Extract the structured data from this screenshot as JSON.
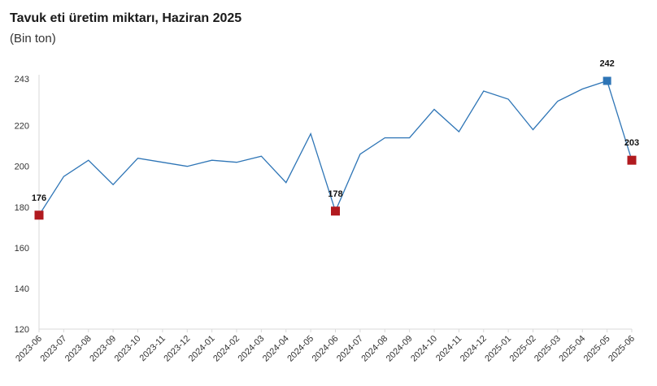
{
  "title": "Tavuk eti üretim miktarı, Haziran 2025",
  "subtitle": "(Bin ton)",
  "colors": {
    "line": "#2e75b6",
    "marker_red": "#b11a1f",
    "marker_blue": "#2e75b6",
    "axis": "#d9d9d9"
  },
  "chart_data": {
    "type": "line",
    "title": "Tavuk eti üretim miktarı, Haziran 2025",
    "subtitle": "(Bin ton)",
    "xlabel": "",
    "ylabel": "",
    "ylim": [
      120,
      243
    ],
    "yticks": [
      120,
      140,
      160,
      180,
      200,
      220,
      243
    ],
    "grid": false,
    "categories": [
      "2023-06",
      "2023-07",
      "2023-08",
      "2023-09",
      "2023-10",
      "2023-11",
      "2023-12",
      "2024-01",
      "2024-02",
      "2024-03",
      "2024-04",
      "2024-05",
      "2024-06",
      "2024-07",
      "2024-08",
      "2024-09",
      "2024-10",
      "2024-11",
      "2024-12",
      "2025-01",
      "2025-02",
      "2025-03",
      "2025-04",
      "2025-05",
      "2025-06"
    ],
    "series": [
      {
        "values": [
          176,
          195,
          203,
          191,
          204,
          202,
          200,
          203,
          202,
          205,
          192,
          216,
          178,
          206,
          214,
          214,
          228,
          217,
          237,
          233,
          218,
          232,
          238,
          242,
          203
        ]
      }
    ],
    "highlights": [
      {
        "index": 0,
        "label": "176",
        "color": "red"
      },
      {
        "index": 12,
        "label": "178",
        "color": "red"
      },
      {
        "index": 23,
        "label": "242",
        "color": "blue"
      },
      {
        "index": 24,
        "label": "203",
        "color": "red"
      }
    ]
  }
}
